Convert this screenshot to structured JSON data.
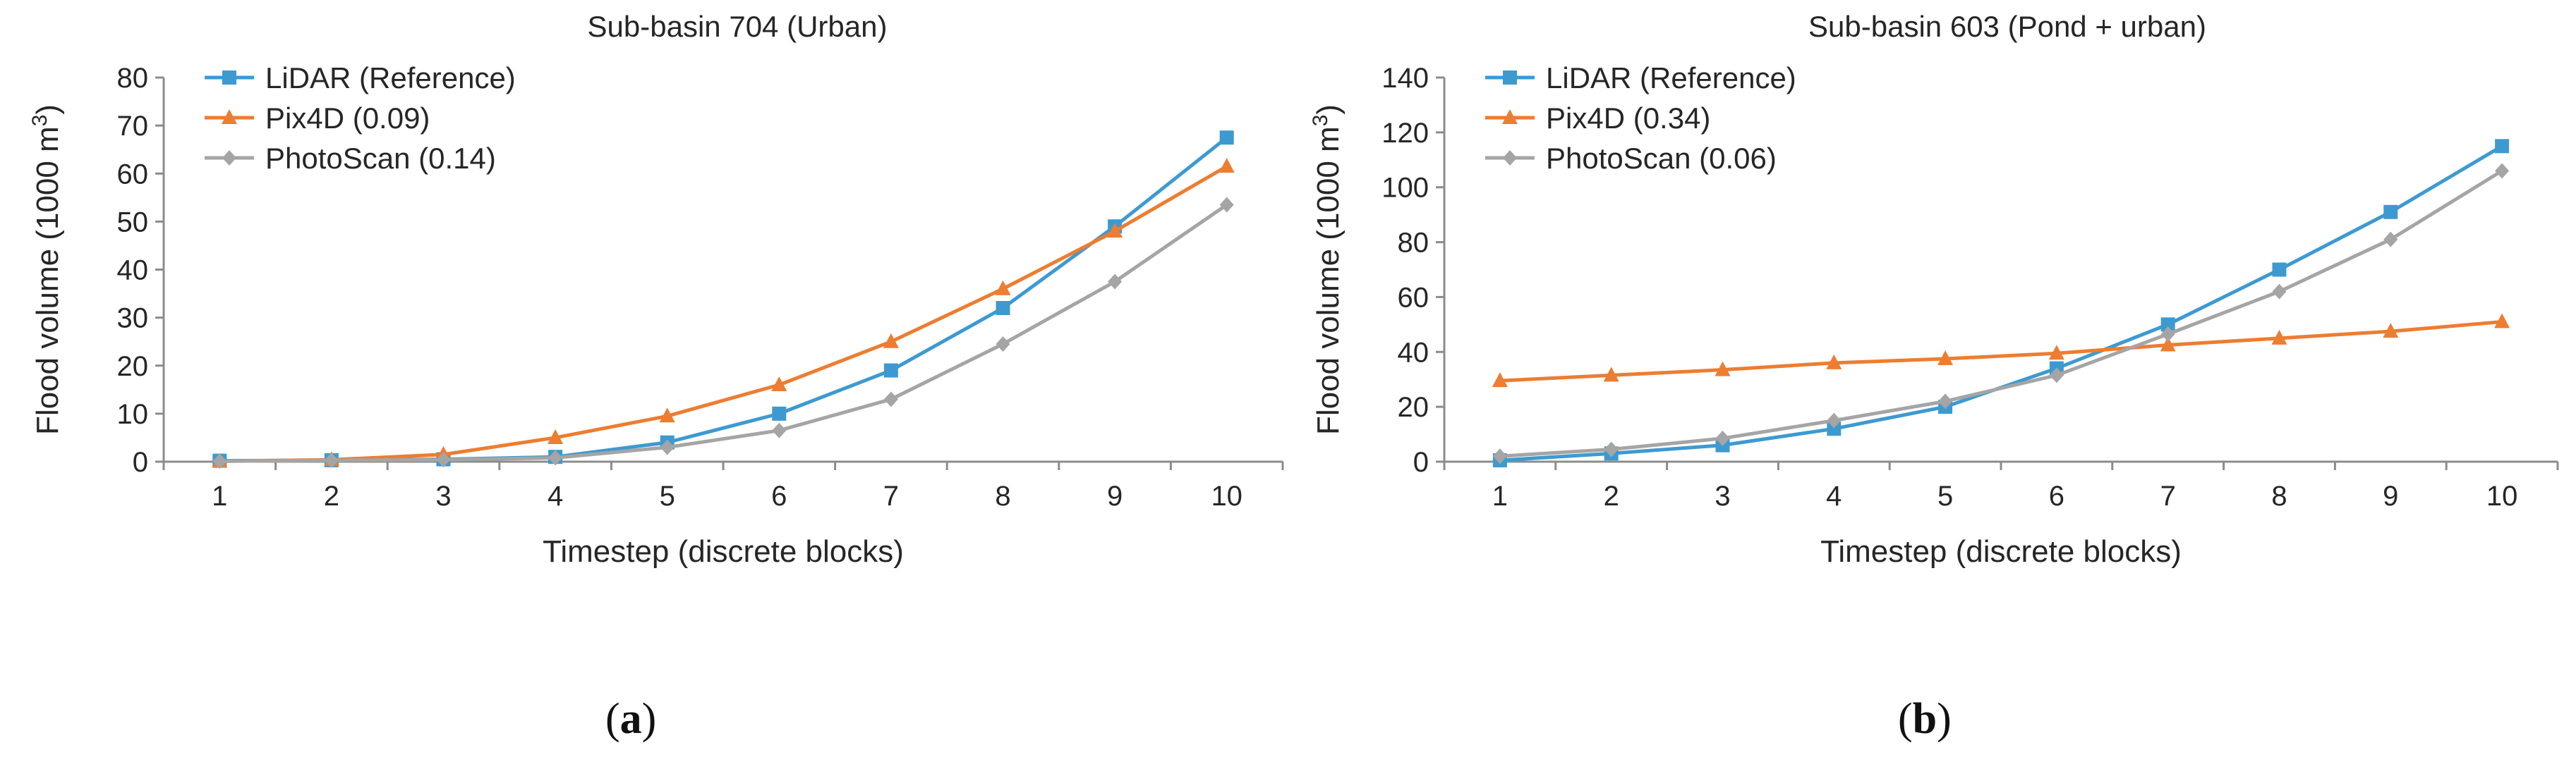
{
  "chart_data": [
    {
      "type": "line",
      "title": "Sub-basin 704 (Urban)",
      "xlabel": "Timestep (discrete blocks)",
      "ylabel": "Flood volume (1000 m",
      "ylabel_sup": "3",
      "ylabel_end": ")",
      "x": [
        1,
        2,
        3,
        4,
        5,
        6,
        7,
        8,
        9,
        10
      ],
      "ylim": [
        0,
        80
      ],
      "ytick_step": 10,
      "grid": false,
      "legend_position": "top-left",
      "series": [
        {
          "name": "LiDAR (Reference)",
          "color": "#3d9ad1",
          "marker": "square",
          "values": [
            0.2,
            0.3,
            0.5,
            1.0,
            4.0,
            10.0,
            19.0,
            32.0,
            49.0,
            67.5
          ]
        },
        {
          "name": "Pix4D (0.09)",
          "color": "#ed7d31",
          "marker": "triangle",
          "values": [
            0.1,
            0.4,
            1.5,
            5.0,
            9.5,
            16.0,
            25.0,
            36.0,
            48.0,
            61.5
          ]
        },
        {
          "name": "PhotoScan (0.14)",
          "color": "#a5a5a5",
          "marker": "diamond",
          "values": [
            0.1,
            0.3,
            0.4,
            0.8,
            3.0,
            6.5,
            13.0,
            24.5,
            37.5,
            53.5
          ]
        }
      ],
      "panel_label": "a"
    },
    {
      "type": "line",
      "title": "Sub-basin 603 (Pond + urban)",
      "xlabel": "Timestep (discrete blocks)",
      "ylabel": "Flood volume (1000 m",
      "ylabel_sup": "3",
      "ylabel_end": ")",
      "x": [
        1,
        2,
        3,
        4,
        5,
        6,
        7,
        8,
        9,
        10
      ],
      "ylim": [
        0,
        140
      ],
      "ytick_step": 20,
      "grid": false,
      "legend_position": "top-left",
      "series": [
        {
          "name": "LiDAR (Reference)",
          "color": "#3d9ad1",
          "marker": "square",
          "values": [
            0.5,
            3.0,
            6.0,
            12.0,
            20.0,
            34.0,
            50.0,
            70.0,
            91.0,
            115.0
          ]
        },
        {
          "name": "Pix4D (0.34)",
          "color": "#ed7d31",
          "marker": "triangle",
          "values": [
            29.5,
            31.5,
            33.5,
            36.0,
            37.5,
            39.5,
            42.5,
            45.0,
            47.5,
            51.0
          ]
        },
        {
          "name": "PhotoScan (0.06)",
          "color": "#a5a5a5",
          "marker": "diamond",
          "values": [
            2.0,
            4.5,
            8.5,
            15.0,
            22.0,
            31.5,
            46.5,
            62.0,
            81.0,
            106.0
          ]
        }
      ],
      "panel_label": "b"
    }
  ]
}
